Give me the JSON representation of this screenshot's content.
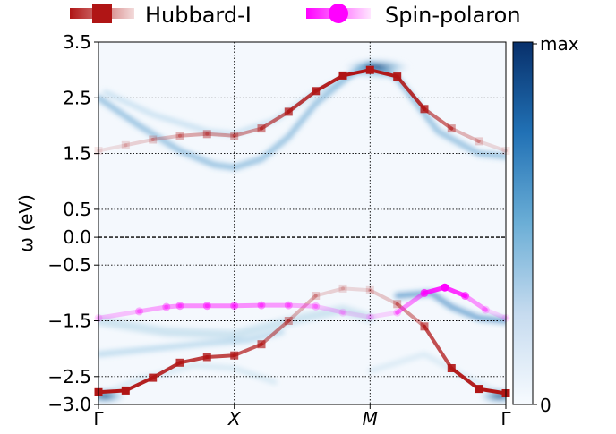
{
  "chart_data": {
    "type": "heatmap",
    "ylabel": "ω (eV)",
    "ylim": [
      -3.0,
      3.5
    ],
    "yticks": [
      -3.0,
      -2.5,
      -1.5,
      -0.5,
      0.0,
      0.5,
      1.5,
      2.5,
      3.5
    ],
    "ytick_labels": [
      "−3.0",
      "−2.5",
      "−1.5",
      "−0.5",
      "0.0",
      "0.5",
      "1.5",
      "2.5",
      "3.5"
    ],
    "xlim": [
      0,
      3
    ],
    "xticks": [
      0,
      1,
      2,
      3
    ],
    "xtick_labels": [
      "Γ",
      "X",
      "M",
      "Γ"
    ],
    "grid": "dotted horizontal at y ticks, vertical at X and M",
    "colorbar": {
      "min_label": "0",
      "max_label": "max",
      "colormap": "Blues"
    },
    "legend": {
      "placement": "top",
      "entries": [
        {
          "label": "Hubbard-I",
          "color": "#b01515",
          "marker": "square"
        },
        {
          "label": "Spin-polaron",
          "color": "#ff00ff",
          "marker": "circle"
        }
      ]
    },
    "series": [
      {
        "name": "Hubbard-I",
        "color": "#b01515",
        "marker": "square",
        "x": [
          0.0,
          0.2,
          0.4,
          0.6,
          0.8,
          1.0,
          1.2,
          1.4,
          1.6,
          1.8,
          2.0,
          2.2,
          2.4,
          2.6,
          2.8,
          3.0
        ],
        "y": [
          1.55,
          1.65,
          1.75,
          1.82,
          1.85,
          1.82,
          1.95,
          2.25,
          2.62,
          2.9,
          3.0,
          2.88,
          2.3,
          1.95,
          1.72,
          1.55
        ],
        "opacity": [
          0.1,
          0.15,
          0.2,
          0.3,
          0.4,
          0.35,
          0.5,
          0.75,
          0.9,
          1.0,
          1.0,
          0.95,
          0.8,
          0.4,
          0.2,
          0.1
        ]
      },
      {
        "name": "Hubbard-I",
        "color": "#b01515",
        "marker": "square",
        "x": [
          0.0,
          0.2,
          0.4,
          0.6,
          0.8,
          1.0,
          1.2,
          1.4,
          1.6,
          1.8,
          2.0,
          2.2,
          2.4,
          2.6,
          2.8,
          3.0
        ],
        "y": [
          -2.78,
          -2.75,
          -2.52,
          -2.25,
          -2.15,
          -2.12,
          -1.92,
          -1.5,
          -1.05,
          -0.92,
          -0.95,
          -1.2,
          -1.6,
          -2.35,
          -2.72,
          -2.8
        ],
        "opacity": [
          1.0,
          1.0,
          0.9,
          0.85,
          0.8,
          0.75,
          0.65,
          0.4,
          0.2,
          0.15,
          0.15,
          0.3,
          0.6,
          0.9,
          1.0,
          1.0
        ]
      },
      {
        "name": "Spin-polaron",
        "color": "#ff00ff",
        "marker": "circle",
        "x": [
          0.0,
          0.3,
          0.5,
          0.6,
          0.8,
          1.0,
          1.2,
          1.4,
          1.6,
          1.8,
          2.0,
          2.2,
          2.4,
          2.55,
          2.7,
          2.85,
          3.0
        ],
        "y": [
          -1.45,
          -1.33,
          -1.25,
          -1.23,
          -1.23,
          -1.23,
          -1.22,
          -1.22,
          -1.24,
          -1.35,
          -1.43,
          -1.35,
          -1.0,
          -0.9,
          -1.05,
          -1.3,
          -1.45
        ],
        "opacity": [
          0.15,
          0.3,
          0.35,
          0.4,
          0.45,
          0.45,
          0.4,
          0.35,
          0.25,
          0.15,
          0.1,
          0.2,
          0.7,
          1.0,
          0.6,
          0.2,
          0.1
        ]
      }
    ]
  }
}
